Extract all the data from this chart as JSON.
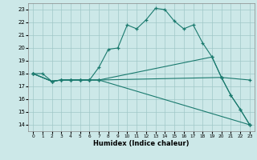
{
  "xlabel": "Humidex (Indice chaleur)",
  "bg_color": "#cce8e8",
  "grid_color": "#a0c8c8",
  "line_color": "#1a7a6e",
  "xlim": [
    -0.5,
    23.5
  ],
  "ylim": [
    13.5,
    23.5
  ],
  "xticks": [
    0,
    1,
    2,
    3,
    4,
    5,
    6,
    7,
    8,
    9,
    10,
    11,
    12,
    13,
    14,
    15,
    16,
    17,
    18,
    19,
    20,
    21,
    22,
    23
  ],
  "yticks": [
    14,
    15,
    16,
    17,
    18,
    19,
    20,
    21,
    22,
    23
  ],
  "line1_x": [
    0,
    1,
    2,
    3,
    4,
    5,
    6,
    7,
    8,
    9,
    10,
    11,
    12,
    13,
    14,
    15,
    16,
    17,
    18,
    19,
    20,
    21,
    22,
    23
  ],
  "line1_y": [
    18.0,
    18.0,
    17.4,
    17.5,
    17.5,
    17.5,
    17.5,
    18.5,
    19.9,
    20.0,
    21.8,
    21.5,
    22.2,
    23.1,
    23.0,
    22.1,
    21.5,
    21.8,
    20.4,
    19.3,
    17.7,
    16.3,
    15.2,
    14.0
  ],
  "line2_x": [
    0,
    2,
    3,
    4,
    5,
    6,
    7,
    19,
    20,
    21,
    22,
    23
  ],
  "line2_y": [
    18.0,
    17.4,
    17.5,
    17.5,
    17.5,
    17.5,
    17.5,
    19.3,
    17.7,
    16.3,
    15.2,
    14.0
  ],
  "line3_x": [
    0,
    2,
    3,
    4,
    5,
    6,
    7,
    20,
    23
  ],
  "line3_y": [
    18.0,
    17.4,
    17.5,
    17.5,
    17.5,
    17.5,
    17.5,
    17.7,
    17.5
  ],
  "line4_x": [
    0,
    2,
    3,
    4,
    5,
    6,
    7,
    23
  ],
  "line4_y": [
    18.0,
    17.4,
    17.5,
    17.5,
    17.5,
    17.5,
    17.5,
    14.0
  ]
}
